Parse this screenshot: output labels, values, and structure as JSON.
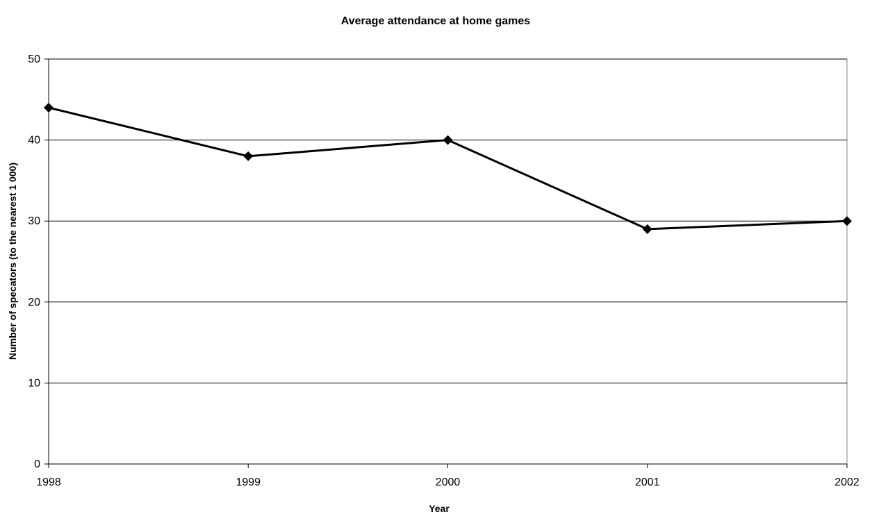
{
  "chart_data": {
    "type": "line",
    "title": "Average attendance at home games",
    "xlabel": "Year",
    "ylabel": "Number of specators (to the nearest 1 000)",
    "categories": [
      "1998",
      "1999",
      "2000",
      "2001",
      "2002"
    ],
    "series": [
      {
        "values": [
          44,
          38,
          40,
          29,
          30
        ]
      }
    ],
    "ylim": [
      0,
      50
    ],
    "yticks": [
      0,
      10,
      20,
      30,
      40,
      50
    ],
    "grid": true,
    "legend": "none",
    "line_color": "#000000",
    "marker": "diamond"
  }
}
